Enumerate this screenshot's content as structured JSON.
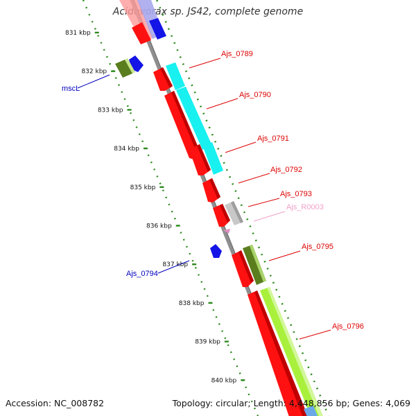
{
  "title": "Acidovorax sp. JS42, complete genome",
  "accession": "Accession: NC_008782",
  "topology": "Topology: circular; Length: 4,448,856 bp; Genes: 4,069",
  "colors": {
    "backbone": "#8f8f8f",
    "tick": "#2d8a1e",
    "cds": "#ff1111",
    "cds_minus": "#1414e6",
    "cog_cyan": "#19f0f0",
    "cog_olive": "#5a7d1e",
    "cog_lime": "#a9f03c",
    "rna": "#c8c8c8",
    "rna_label": "#f0a0c8"
  },
  "ticks": [
    {
      "label": "831 kbp"
    },
    {
      "label": "832 kbp"
    },
    {
      "label": "833 kbp"
    },
    {
      "label": "834 kbp"
    },
    {
      "label": "835 kbp"
    },
    {
      "label": "836 kbp"
    },
    {
      "label": "837 kbp"
    },
    {
      "label": "838 kbp"
    },
    {
      "label": "839 kbp"
    },
    {
      "label": "840 kbp"
    }
  ],
  "gene_labels": [
    {
      "text": "Ajs_0789",
      "color": "#dd0000"
    },
    {
      "text": "Ajs_0790",
      "color": "#dd0000"
    },
    {
      "text": "Ajs_0791",
      "color": "#dd0000"
    },
    {
      "text": "Ajs_0792",
      "color": "#dd0000"
    },
    {
      "text": "Ajs_0793",
      "color": "#dd0000"
    },
    {
      "text": "Ajs_R0003",
      "color": "#f0a0c8"
    },
    {
      "text": "Ajs_0795",
      "color": "#dd0000"
    },
    {
      "text": "Ajs_0796",
      "color": "#dd0000"
    },
    {
      "text": "mscL",
      "color": "#0000bb"
    },
    {
      "text": "Ajs_0794",
      "color": "#0000bb"
    }
  ]
}
